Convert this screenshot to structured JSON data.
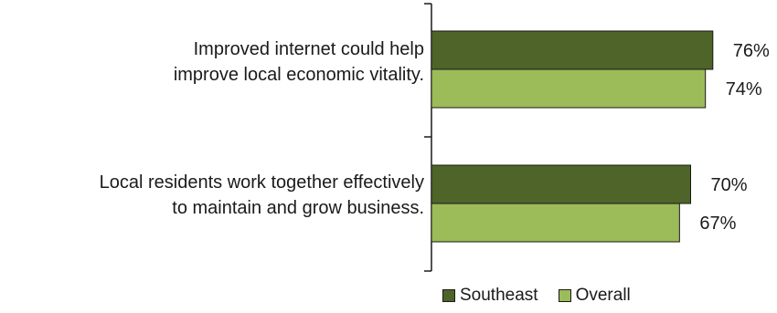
{
  "chart_data": {
    "type": "bar",
    "orientation": "horizontal",
    "categories": [
      "Improved internet could help\nimprove local economic vitality.",
      "Local residents work together effectively\nto maintain and grow business."
    ],
    "series": [
      {
        "name": "Southeast",
        "values": [
          76,
          70
        ],
        "labels": [
          "76%",
          "70%"
        ],
        "color": "#4e6429"
      },
      {
        "name": "Overall",
        "values": [
          74,
          67
        ],
        "labels": [
          "74%",
          "67%"
        ],
        "color": "#9cbb59"
      }
    ],
    "xlim": [
      0,
      100
    ],
    "grid": false,
    "legend": "bottom"
  }
}
